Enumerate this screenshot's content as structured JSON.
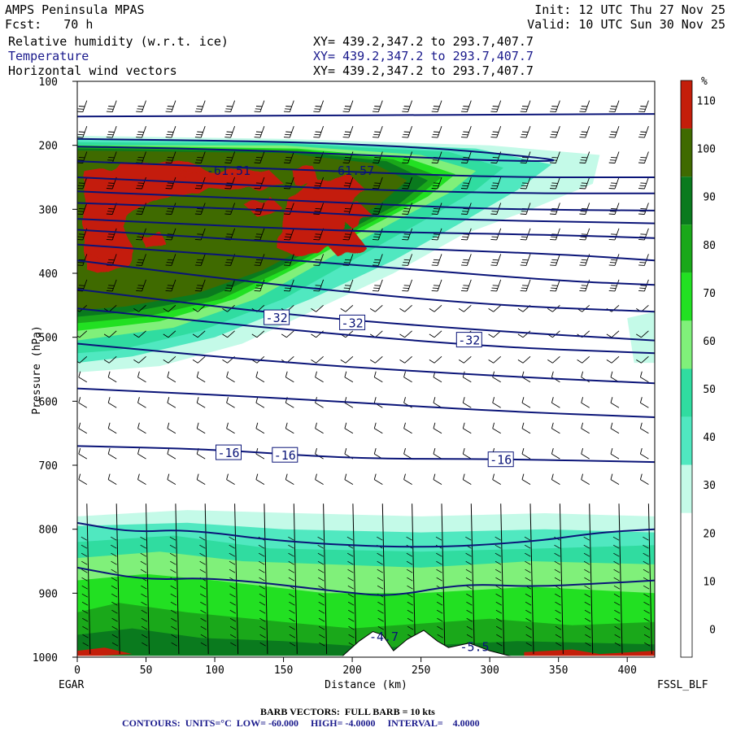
{
  "header": {
    "model": "AMPS Peninsula MPAS",
    "forecast": "Fcst:   70 h",
    "init": "Init: 12 UTC Thu 27 Nov 25",
    "valid": "Valid: 10 UTC Sun 30 Nov 25",
    "fields": [
      {
        "name": "Relative humidity (w.r.t. ice)",
        "xy": "XY= 439.2,347.2 to 293.7,407.7"
      },
      {
        "name": "Temperature",
        "xy": "XY= 439.2,347.2 to 293.7,407.7"
      },
      {
        "name": "Horizontal wind vectors",
        "xy": "XY= 439.2,347.2 to 293.7,407.7"
      }
    ]
  },
  "footer": {
    "barb_note": "BARB VECTORS:  FULL BARB = 10 kts",
    "contours_note": "CONTOURS:  UNITS=°C  LOW= -60.000     HIGH= -4.0000     INTERVAL=    4.0000"
  },
  "colors": {
    "rh_110_plus": "#c41e0a",
    "rh_100_110": "#3f6a00",
    "rh_90_100": "#0a7a1e",
    "rh_80_90": "#1aa81a",
    "rh_70_80": "#22e022",
    "rh_60_70": "#80f07a",
    "rh_50_60": "#30dca0",
    "rh_40_50": "#50e8c0",
    "rh_30_40": "#c4fae8",
    "temperature_line": "#0a1478"
  },
  "chart_data": {
    "type": "heatmap",
    "title": "Relative humidity (w.r.t. ice)",
    "xlabel": "Distance (km)",
    "ylabel": "Pressure (hPa)",
    "xlim": [
      0,
      420
    ],
    "ylim": [
      1000,
      100
    ],
    "x_ticks": [
      0,
      50,
      100,
      150,
      200,
      250,
      300,
      350,
      400
    ],
    "y_ticks": [
      100,
      200,
      300,
      400,
      500,
      600,
      700,
      800,
      900,
      1000
    ],
    "endpoint_left": "EGAR",
    "endpoint_right": "FSSL_BLF",
    "colorbar": {
      "unit": "%",
      "levels": [
        0,
        10,
        20,
        30,
        40,
        50,
        60,
        70,
        80,
        90,
        100,
        110
      ],
      "colors": [
        "#ffffff",
        "#ffffff",
        "#ffffff",
        "#c4fae8",
        "#50e8c0",
        "#30dca0",
        "#80f07a",
        "#22e022",
        "#1aa81a",
        "#0a7a1e",
        "#3f6a00",
        "#c41e0a"
      ]
    },
    "temperature_contour_labels": [
      {
        "text": "-61.51",
        "x": 110,
        "p": 240
      },
      {
        "text": "-61.57",
        "x": 200,
        "p": 240
      },
      {
        "text": "-32",
        "x": 145,
        "p": 470
      },
      {
        "text": "-32",
        "x": 200,
        "p": 478
      },
      {
        "text": "-32",
        "x": 285,
        "p": 505
      },
      {
        "text": "-16",
        "x": 110,
        "p": 681
      },
      {
        "text": "-16",
        "x": 151,
        "p": 685
      },
      {
        "text": "-16",
        "x": 308,
        "p": 692
      },
      {
        "text": "-4.7",
        "x": 223,
        "p": 968
      },
      {
        "text": "-5.5",
        "x": 289,
        "p": 984
      }
    ],
    "temperature_contours": [
      {
        "points": [
          [
            0,
            155
          ],
          [
            420,
            151
          ]
        ]
      },
      {
        "points": [
          [
            0,
            190
          ],
          [
            150,
            194
          ],
          [
            260,
            204
          ],
          [
            330,
            218
          ],
          [
            355,
            225
          ],
          [
            300,
            224
          ],
          [
            200,
            214
          ],
          [
            100,
            206
          ],
          [
            0,
            202
          ]
        ]
      },
      {
        "points": [
          [
            0,
            225
          ],
          [
            150,
            237
          ],
          [
            300,
            250
          ],
          [
            420,
            250
          ]
        ]
      },
      {
        "points": [
          [
            0,
            250
          ],
          [
            150,
            265
          ],
          [
            300,
            275
          ],
          [
            420,
            275
          ]
        ]
      },
      {
        "points": [
          [
            0,
            272
          ],
          [
            200,
            290
          ],
          [
            300,
            300
          ],
          [
            420,
            302
          ]
        ]
      },
      {
        "points": [
          [
            0,
            290
          ],
          [
            150,
            302
          ],
          [
            250,
            315
          ],
          [
            420,
            322
          ]
        ]
      },
      {
        "points": [
          [
            0,
            315
          ],
          [
            200,
            335
          ],
          [
            350,
            340
          ],
          [
            420,
            345
          ]
        ]
      },
      {
        "points": [
          [
            0,
            332
          ],
          [
            200,
            358
          ],
          [
            350,
            370
          ],
          [
            420,
            380
          ]
        ]
      },
      {
        "points": [
          [
            0,
            355
          ],
          [
            200,
            386
          ],
          [
            350,
            412
          ],
          [
            420,
            418
          ]
        ]
      },
      {
        "points": [
          [
            0,
            380
          ],
          [
            150,
            420
          ],
          [
            300,
            450
          ],
          [
            420,
            460
          ]
        ]
      },
      {
        "points": [
          [
            0,
            425
          ],
          [
            150,
            465
          ],
          [
            300,
            490
          ],
          [
            420,
            505
          ]
        ]
      },
      {
        "points": [
          [
            0,
            455
          ],
          [
            150,
            488
          ],
          [
            300,
            515
          ],
          [
            420,
            525
          ]
        ]
      },
      {
        "points": [
          [
            0,
            510
          ],
          [
            150,
            540
          ],
          [
            300,
            560
          ],
          [
            420,
            572
          ]
        ]
      },
      {
        "points": [
          [
            0,
            580
          ],
          [
            150,
            595
          ],
          [
            300,
            615
          ],
          [
            420,
            625
          ]
        ]
      },
      {
        "points": [
          [
            0,
            670
          ],
          [
            100,
            675
          ],
          [
            200,
            690
          ],
          [
            300,
            690
          ],
          [
            420,
            695
          ]
        ]
      },
      {
        "points": [
          [
            0,
            790
          ],
          [
            40,
            805
          ],
          [
            80,
            800
          ],
          [
            150,
            820
          ],
          [
            250,
            830
          ],
          [
            330,
            820
          ],
          [
            380,
            805
          ],
          [
            420,
            800
          ]
        ]
      },
      {
        "points": [
          [
            0,
            860
          ],
          [
            50,
            880
          ],
          [
            100,
            875
          ],
          [
            200,
            900
          ],
          [
            230,
            905
          ],
          [
            280,
            885
          ],
          [
            330,
            890
          ],
          [
            380,
            885
          ],
          [
            420,
            880
          ]
        ]
      }
    ]
  }
}
